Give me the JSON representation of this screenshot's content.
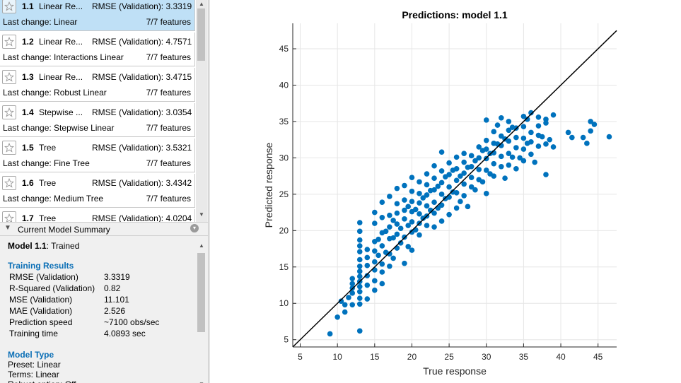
{
  "models": [
    {
      "number": "1.1",
      "name": "Linear Re...",
      "rmse": "RMSE (Validation): 3.3319",
      "change": "Last change: Linear",
      "features": "7/7 features"
    },
    {
      "number": "1.2",
      "name": "Linear Re...",
      "rmse": "RMSE (Validation): 4.7571",
      "change": "Last change: Interactions Linear",
      "features": "7/7 features"
    },
    {
      "number": "1.3",
      "name": "Linear Re...",
      "rmse": "RMSE (Validation): 3.4715",
      "change": "Last change: Robust Linear",
      "features": "7/7 features"
    },
    {
      "number": "1.4",
      "name": "Stepwise ...",
      "rmse": "RMSE (Validation): 3.0354",
      "change": "Last change: Stepwise Linear",
      "features": "7/7 features"
    },
    {
      "number": "1.5",
      "name": "Tree",
      "rmse": "RMSE (Validation): 3.5321",
      "change": "Last change: Fine Tree",
      "features": "7/7 features"
    },
    {
      "number": "1.6",
      "name": "Tree",
      "rmse": "RMSE (Validation): 3.4342",
      "change": "Last change: Medium Tree",
      "features": "7/7 features"
    },
    {
      "number": "1.7",
      "name": "Tree",
      "rmse": "RMSE (Validation): 4.0204",
      "change": "",
      "features": ""
    }
  ],
  "summary": {
    "header": "Current Model Summary",
    "model_label": "Model 1.1",
    "model_status": ": Trained",
    "training_results_title": "Training Results",
    "results": [
      {
        "label": "RMSE (Validation)",
        "value": "3.3319"
      },
      {
        "label": "R-Squared (Validation)",
        "value": "0.82"
      },
      {
        "label": "MSE (Validation)",
        "value": "11.101"
      },
      {
        "label": "MAE (Validation)",
        "value": "2.526"
      },
      {
        "label": "Prediction speed",
        "value": "~7100 obs/sec"
      },
      {
        "label": "Training time",
        "value": "4.0893 sec"
      }
    ],
    "model_type_title": "Model Type",
    "model_type_lines": [
      "Preset: Linear",
      "Terms: Linear",
      "Robust option: Off"
    ]
  },
  "colors": {
    "accent": "#0072bd",
    "selected_row": "#bfe0f6",
    "section_title": "#0b6fb6"
  },
  "chart_data": {
    "type": "scatter",
    "title": "Predictions: model 1.1",
    "xlabel": "True response",
    "ylabel": "Predicted response",
    "xlim": [
      4,
      47.5
    ],
    "ylim": [
      4,
      48.5
    ],
    "xticks": [
      5,
      10,
      15,
      20,
      25,
      30,
      35,
      40,
      45
    ],
    "yticks": [
      5,
      10,
      15,
      20,
      25,
      30,
      35,
      40,
      45
    ],
    "grid": true,
    "reference_line": "y = x (perfect prediction)",
    "series": [
      {
        "name": "Observations",
        "color": "#0072bd",
        "points": [
          [
            9,
            5.8
          ],
          [
            10,
            8.1
          ],
          [
            10.5,
            10.3
          ],
          [
            11,
            8.8
          ],
          [
            11,
            9.8
          ],
          [
            11.5,
            10.8
          ],
          [
            12,
            9.8
          ],
          [
            12,
            11.4
          ],
          [
            12,
            12.1
          ],
          [
            12,
            12.7
          ],
          [
            12,
            13.4
          ],
          [
            13,
            6.2
          ],
          [
            13,
            9.9
          ],
          [
            13,
            10.7
          ],
          [
            13,
            11.6
          ],
          [
            13,
            12.3
          ],
          [
            13,
            13.0
          ],
          [
            13,
            13.7
          ],
          [
            13,
            14.4
          ],
          [
            13,
            15.1
          ],
          [
            13,
            16.0
          ],
          [
            13,
            17.1
          ],
          [
            13,
            17.9
          ],
          [
            13,
            18.7
          ],
          [
            13,
            19.9
          ],
          [
            13,
            21.1
          ],
          [
            14,
            10.6
          ],
          [
            14,
            12.5
          ],
          [
            14,
            13.8
          ],
          [
            14,
            15.2
          ],
          [
            14,
            16.3
          ],
          [
            14,
            17.4
          ],
          [
            15,
            11.8
          ],
          [
            15,
            13.1
          ],
          [
            15,
            14.6
          ],
          [
            15,
            15.7
          ],
          [
            15,
            17.2
          ],
          [
            15,
            18.5
          ],
          [
            15,
            21.0
          ],
          [
            15,
            22.5
          ],
          [
            15.5,
            16.6
          ],
          [
            15.5,
            18.8
          ],
          [
            16,
            12.7
          ],
          [
            16,
            14.3
          ],
          [
            16,
            15.4
          ],
          [
            16,
            17.9
          ],
          [
            16,
            19.7
          ],
          [
            16,
            21.8
          ],
          [
            16,
            23.9
          ],
          [
            16.5,
            17.0
          ],
          [
            16.5,
            19.9
          ],
          [
            17,
            15.1
          ],
          [
            17,
            16.8
          ],
          [
            17,
            18.9
          ],
          [
            17,
            20.5
          ],
          [
            17,
            22.1
          ],
          [
            17,
            24.7
          ],
          [
            17.5,
            16.2
          ],
          [
            17.5,
            19.0
          ],
          [
            17.5,
            21.4
          ],
          [
            18,
            17.6
          ],
          [
            18,
            19.5
          ],
          [
            18,
            20.9
          ],
          [
            18,
            22.4
          ],
          [
            18,
            23.7
          ],
          [
            18,
            25.8
          ],
          [
            18.5,
            18.3
          ],
          [
            18.5,
            20.3
          ],
          [
            19,
            15.5
          ],
          [
            19,
            19.1
          ],
          [
            19,
            21.6
          ],
          [
            19,
            22.8
          ],
          [
            19,
            24.2
          ],
          [
            19,
            26.2
          ],
          [
            19.5,
            17.8
          ],
          [
            19.5,
            20.7
          ],
          [
            19.5,
            23.3
          ],
          [
            20,
            17.3
          ],
          [
            20,
            19.8
          ],
          [
            20,
            21.2
          ],
          [
            20,
            22.6
          ],
          [
            20,
            24.0
          ],
          [
            20,
            25.4
          ],
          [
            20,
            27.3
          ],
          [
            20.5,
            20.1
          ],
          [
            20.5,
            22.9
          ],
          [
            21,
            19.4
          ],
          [
            21,
            21.0
          ],
          [
            21,
            22.3
          ],
          [
            21,
            23.8
          ],
          [
            21,
            25.1
          ],
          [
            21,
            26.7
          ],
          [
            21.5,
            21.7
          ],
          [
            21.5,
            24.5
          ],
          [
            22,
            20.7
          ],
          [
            22,
            22.0
          ],
          [
            22,
            23.4
          ],
          [
            22,
            24.9
          ],
          [
            22,
            26.3
          ],
          [
            22,
            27.8
          ],
          [
            22.5,
            22.8
          ],
          [
            22.5,
            25.5
          ],
          [
            23,
            20.5
          ],
          [
            23,
            22.4
          ],
          [
            23,
            23.9
          ],
          [
            23,
            25.6
          ],
          [
            23,
            27.2
          ],
          [
            23,
            28.9
          ],
          [
            23.5,
            23.1
          ],
          [
            23.5,
            26.1
          ],
          [
            24,
            21.3
          ],
          [
            24,
            23.5
          ],
          [
            24,
            25.0
          ],
          [
            24,
            26.6
          ],
          [
            24,
            28.2
          ],
          [
            24,
            30.8
          ],
          [
            24.5,
            24.4
          ],
          [
            24.5,
            27.4
          ],
          [
            25,
            22.2
          ],
          [
            25,
            24.6
          ],
          [
            25,
            26.0
          ],
          [
            25,
            27.7
          ],
          [
            25,
            29.3
          ],
          [
            25.5,
            25.3
          ],
          [
            25.5,
            28.3
          ],
          [
            26,
            23.1
          ],
          [
            26,
            25.2
          ],
          [
            26,
            26.9
          ],
          [
            26,
            28.5
          ],
          [
            26,
            30.1
          ],
          [
            26.5,
            24.0
          ],
          [
            26.5,
            27.5
          ],
          [
            27,
            24.8
          ],
          [
            27,
            26.4
          ],
          [
            27,
            27.9
          ],
          [
            27,
            29.4
          ],
          [
            27,
            30.6
          ],
          [
            27.5,
            23.3
          ],
          [
            27.5,
            28.7
          ],
          [
            28,
            26.0
          ],
          [
            28,
            27.3
          ],
          [
            28,
            28.8
          ],
          [
            28,
            30.3
          ],
          [
            28.5,
            25.6
          ],
          [
            28.5,
            29.6
          ],
          [
            29,
            27.0
          ],
          [
            29,
            28.4
          ],
          [
            29,
            30.0
          ],
          [
            29,
            31.5
          ],
          [
            29.5,
            26.7
          ],
          [
            29.5,
            31.0
          ],
          [
            30,
            25.1
          ],
          [
            30,
            28.3
          ],
          [
            30,
            29.9
          ],
          [
            30,
            31.2
          ],
          [
            30,
            32.4
          ],
          [
            30,
            35.2
          ],
          [
            30.5,
            27.8
          ],
          [
            30.5,
            30.6
          ],
          [
            31,
            27.5
          ],
          [
            31,
            29.2
          ],
          [
            31,
            30.7
          ],
          [
            31,
            32.0
          ],
          [
            31,
            33.6
          ],
          [
            31.5,
            31.9
          ],
          [
            31.5,
            34.5
          ],
          [
            32,
            28.8
          ],
          [
            32,
            30.2
          ],
          [
            32,
            31.7
          ],
          [
            32,
            33.0
          ],
          [
            32,
            35.5
          ],
          [
            32.5,
            27.2
          ],
          [
            32.5,
            32.6
          ],
          [
            33,
            29.0
          ],
          [
            33,
            30.6
          ],
          [
            33,
            32.3
          ],
          [
            33,
            33.8
          ],
          [
            33,
            35.0
          ],
          [
            33.5,
            30.1
          ],
          [
            33.5,
            34.2
          ],
          [
            34,
            28.5
          ],
          [
            34,
            31.4
          ],
          [
            34,
            32.8
          ],
          [
            34,
            34.1
          ],
          [
            34.5,
            30.0
          ],
          [
            35,
            29.6
          ],
          [
            35,
            31.2
          ],
          [
            35,
            32.7
          ],
          [
            35,
            34.3
          ],
          [
            35,
            35.7
          ],
          [
            35.5,
            32.0
          ],
          [
            35.5,
            35.3
          ],
          [
            36,
            30.5
          ],
          [
            36,
            32.2
          ],
          [
            36,
            33.5
          ],
          [
            36,
            36.2
          ],
          [
            36.5,
            29.4
          ],
          [
            37,
            31.6
          ],
          [
            37,
            33.1
          ],
          [
            37,
            34.4
          ],
          [
            37,
            35.6
          ],
          [
            37.5,
            32.9
          ],
          [
            38,
            27.7
          ],
          [
            38,
            31.9
          ],
          [
            38,
            34.8
          ],
          [
            38,
            35.3
          ],
          [
            38.5,
            32.5
          ],
          [
            39,
            31.5
          ],
          [
            39,
            35.9
          ],
          [
            41,
            33.5
          ],
          [
            41.5,
            32.8
          ],
          [
            43,
            32.8
          ],
          [
            43.5,
            32.0
          ],
          [
            44,
            33.7
          ],
          [
            44,
            35.0
          ],
          [
            44.5,
            34.6
          ],
          [
            46.5,
            32.9
          ]
        ]
      }
    ]
  }
}
